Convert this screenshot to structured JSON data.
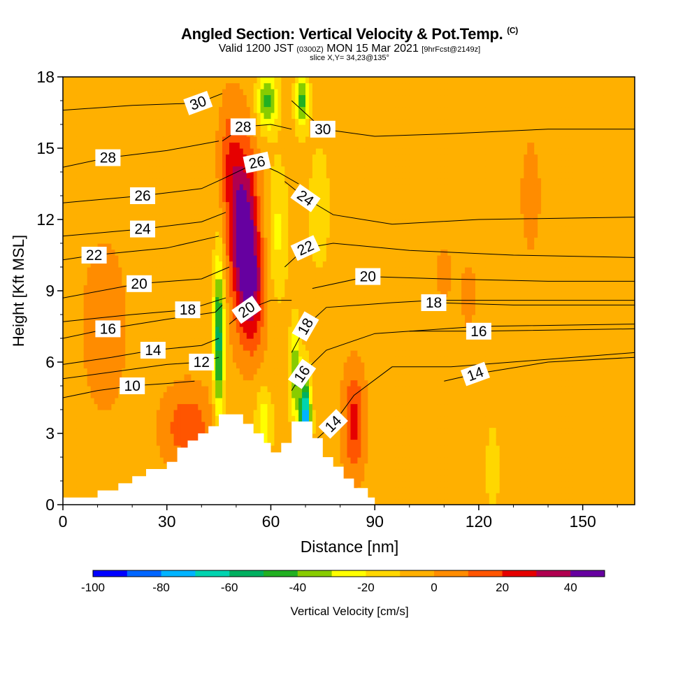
{
  "title": {
    "main": "Angled Section: Vertical Velocity & Pot.Temp.",
    "mark": "(C)",
    "valid_prefix": "Valid 1200 JST",
    "valid_zulu": "(0300Z)",
    "valid_date": "MON 15 Mar 2021",
    "valid_fcst": "[9hrFcst@2149z]",
    "slice": "slice X,Y= 34,23@135°"
  },
  "chart_data": {
    "type": "heatmap",
    "xlabel": "Distance [nm]",
    "ylabel": "Height [Kft MSL]",
    "xlim": [
      0,
      165
    ],
    "ylim": [
      0,
      18
    ],
    "x_ticks": [
      0,
      30,
      60,
      90,
      120,
      150
    ],
    "y_ticks": [
      0,
      3,
      6,
      9,
      12,
      15,
      18
    ],
    "colorbar": {
      "label": "Vertical Velocity [cm/s]",
      "ticks": [
        -100,
        -80,
        -60,
        -40,
        -20,
        0,
        20,
        40
      ],
      "bins": [
        -100,
        -90,
        -80,
        -70,
        -60,
        -50,
        -40,
        -30,
        -20,
        -10,
        0,
        10,
        20,
        30,
        40,
        50
      ],
      "colors": [
        "#0000ff",
        "#0066ff",
        "#00b4ff",
        "#00d4b0",
        "#00b060",
        "#22b022",
        "#88cc00",
        "#ffff00",
        "#ffd700",
        "#ffb000",
        "#ff8c00",
        "#ff5500",
        "#e60000",
        "#b00050",
        "#6600a0"
      ]
    },
    "theta_contours": [
      {
        "label": "10",
        "label_at": [
          20,
          5.0
        ],
        "rot": 0,
        "pts": [
          [
            0,
            4.5
          ],
          [
            10,
            4.8
          ],
          [
            20,
            5.0
          ],
          [
            30,
            5.1
          ],
          [
            38,
            5.2
          ]
        ]
      },
      {
        "label": "12",
        "label_at": [
          40,
          6.0
        ],
        "rot": 0,
        "pts": [
          [
            0,
            5.3
          ],
          [
            15,
            5.6
          ],
          [
            30,
            5.9
          ],
          [
            40,
            6.0
          ],
          [
            45,
            6.2
          ]
        ]
      },
      {
        "label": "14",
        "label_at": [
          26,
          6.5
        ],
        "rot": 0,
        "pts": [
          [
            0,
            5.9
          ],
          [
            14,
            6.2
          ],
          [
            26,
            6.5
          ],
          [
            40,
            6.7
          ],
          [
            45,
            7.0
          ]
        ]
      },
      {
        "label": "16",
        "label_at": [
          13,
          7.4
        ],
        "rot": 0,
        "pts": [
          [
            0,
            7.0
          ],
          [
            13,
            7.4
          ],
          [
            30,
            7.8
          ],
          [
            44,
            8.1
          ],
          [
            46,
            8.4
          ]
        ]
      },
      {
        "label": "18",
        "label_at": [
          36,
          8.2
        ],
        "rot": 0,
        "pts": [
          [
            0,
            7.7
          ],
          [
            20,
            8.0
          ],
          [
            36,
            8.2
          ],
          [
            47,
            8.7
          ]
        ]
      },
      {
        "label": "20",
        "label_at": [
          22,
          9.3
        ],
        "rot": 0,
        "pts": [
          [
            0,
            8.7
          ],
          [
            22,
            9.3
          ],
          [
            40,
            9.5
          ],
          [
            48,
            10.0
          ]
        ]
      },
      {
        "label": "22",
        "label_at": [
          9,
          10.5
        ],
        "rot": 0,
        "pts": [
          [
            0,
            10.3
          ],
          [
            9,
            10.5
          ],
          [
            30,
            10.8
          ],
          [
            45,
            11.3
          ]
        ]
      },
      {
        "label": "24",
        "label_at": [
          23,
          11.6
        ],
        "rot": 0,
        "pts": [
          [
            0,
            11.3
          ],
          [
            23,
            11.6
          ],
          [
            40,
            11.9
          ],
          [
            47,
            12.3
          ]
        ]
      },
      {
        "label": "26",
        "label_at": [
          23,
          13.0
        ],
        "rot": 0,
        "pts": [
          [
            0,
            12.7
          ],
          [
            23,
            13.0
          ],
          [
            40,
            13.3
          ],
          [
            46,
            13.7
          ]
        ]
      },
      {
        "label": "28",
        "label_at": [
          13,
          14.6
        ],
        "rot": 0,
        "pts": [
          [
            0,
            14.2
          ],
          [
            13,
            14.6
          ],
          [
            30,
            14.9
          ],
          [
            45,
            15.3
          ]
        ]
      },
      {
        "label": "30",
        "label_at": [
          39,
          16.9
        ],
        "rot": -20,
        "pts": [
          [
            0,
            16.6
          ],
          [
            20,
            16.8
          ],
          [
            39,
            16.9
          ],
          [
            46,
            17.3
          ]
        ]
      },
      {
        "label": "28",
        "label_at": [
          52,
          15.9
        ],
        "rot": 0,
        "pts": [
          [
            46,
            15.3
          ],
          [
            52,
            15.9
          ],
          [
            60,
            16.0
          ],
          [
            66,
            15.8
          ]
        ]
      },
      {
        "label": "26",
        "label_at": [
          56,
          14.4
        ],
        "rot": -12,
        "pts": [
          [
            46,
            13.7
          ],
          [
            56,
            14.4
          ],
          [
            62,
            14.0
          ],
          [
            68,
            13.5
          ]
        ]
      },
      {
        "label": "30",
        "label_at": [
          75,
          15.8
        ],
        "rot": 0,
        "pts": [
          [
            66,
            17.0
          ],
          [
            75,
            15.8
          ],
          [
            90,
            15.5
          ],
          [
            110,
            15.6
          ],
          [
            140,
            15.8
          ],
          [
            165,
            15.8
          ]
        ]
      },
      {
        "label": "24",
        "label_at": [
          70,
          12.9
        ],
        "rot": 35,
        "pts": [
          [
            64,
            13.6
          ],
          [
            70,
            12.9
          ],
          [
            78,
            12.2
          ],
          [
            95,
            11.8
          ],
          [
            120,
            12.0
          ],
          [
            165,
            12.1
          ]
        ]
      },
      {
        "label": "22",
        "label_at": [
          70,
          10.8
        ],
        "rot": -25,
        "pts": [
          [
            64,
            10.0
          ],
          [
            70,
            10.8
          ],
          [
            78,
            11.0
          ],
          [
            100,
            10.7
          ],
          [
            130,
            10.5
          ],
          [
            165,
            10.4
          ]
        ]
      },
      {
        "label": "20",
        "label_at": [
          53,
          8.2
        ],
        "rot": -35,
        "pts": [
          [
            48,
            7.6
          ],
          [
            53,
            8.2
          ],
          [
            60,
            8.6
          ],
          [
            66,
            8.6
          ]
        ]
      },
      {
        "label": "20",
        "label_at": [
          88,
          9.6
        ],
        "rot": 0,
        "pts": [
          [
            72,
            9.1
          ],
          [
            88,
            9.6
          ],
          [
            110,
            9.5
          ],
          [
            140,
            9.4
          ],
          [
            165,
            9.4
          ]
        ]
      },
      {
        "label": "18",
        "label_at": [
          70,
          7.5
        ],
        "rot": -60,
        "pts": [
          [
            66,
            6.4
          ],
          [
            70,
            7.5
          ],
          [
            76,
            8.3
          ],
          [
            95,
            8.5
          ],
          [
            107,
            8.6
          ],
          [
            165,
            8.6
          ]
        ]
      },
      {
        "label": "18",
        "label_at": [
          107,
          8.5
        ],
        "rot": 0,
        "pts": [
          [
            107,
            8.5
          ],
          [
            130,
            8.4
          ],
          [
            165,
            8.4
          ]
        ]
      },
      {
        "label": "16",
        "label_at": [
          69,
          5.5
        ],
        "rot": -55,
        "pts": [
          [
            66,
            4.8
          ],
          [
            69,
            5.5
          ],
          [
            76,
            6.5
          ],
          [
            90,
            7.2
          ],
          [
            120,
            7.5
          ],
          [
            165,
            7.6
          ]
        ]
      },
      {
        "label": "16",
        "label_at": [
          120,
          7.3
        ],
        "rot": 0,
        "pts": [
          [
            100,
            7.3
          ],
          [
            120,
            7.3
          ],
          [
            165,
            7.4
          ]
        ]
      },
      {
        "label": "14",
        "label_at": [
          78,
          3.4
        ],
        "rot": -45,
        "pts": [
          [
            72,
            2.6
          ],
          [
            78,
            3.4
          ],
          [
            84,
            4.6
          ],
          [
            95,
            5.8
          ],
          [
            112,
            5.8
          ],
          [
            165,
            6.4
          ]
        ]
      },
      {
        "label": "14",
        "label_at": [
          119,
          5.5
        ],
        "rot": -20,
        "pts": [
          [
            110,
            5.2
          ],
          [
            119,
            5.5
          ],
          [
            140,
            6.0
          ],
          [
            165,
            6.2
          ]
        ]
      }
    ]
  },
  "terrain": [
    [
      0,
      0.3
    ],
    [
      10,
      0.3
    ],
    [
      10,
      0.6
    ],
    [
      16,
      0.6
    ],
    [
      16,
      0.9
    ],
    [
      20,
      0.9
    ],
    [
      20,
      1.2
    ],
    [
      24,
      1.2
    ],
    [
      24,
      1.5
    ],
    [
      30,
      1.5
    ],
    [
      30,
      1.8
    ],
    [
      33,
      1.8
    ],
    [
      33,
      2.4
    ],
    [
      36,
      2.4
    ],
    [
      36,
      2.7
    ],
    [
      39,
      2.7
    ],
    [
      39,
      3.0
    ],
    [
      42,
      3.0
    ],
    [
      42,
      3.3
    ],
    [
      45,
      3.3
    ],
    [
      45,
      3.8
    ],
    [
      52,
      3.8
    ],
    [
      52,
      3.4
    ],
    [
      55,
      3.4
    ],
    [
      55,
      3.0
    ],
    [
      58,
      3.0
    ],
    [
      58,
      2.6
    ],
    [
      60,
      2.6
    ],
    [
      60,
      2.2
    ],
    [
      63,
      2.2
    ],
    [
      63,
      2.6
    ],
    [
      66,
      2.6
    ],
    [
      66,
      3.5
    ],
    [
      72,
      3.5
    ],
    [
      72,
      2.8
    ],
    [
      75,
      2.8
    ],
    [
      75,
      2.0
    ],
    [
      78,
      2.0
    ],
    [
      78,
      1.6
    ],
    [
      81,
      1.6
    ],
    [
      81,
      1.1
    ],
    [
      84,
      1.1
    ],
    [
      84,
      0.7
    ],
    [
      88,
      0.7
    ],
    [
      88,
      0.3
    ],
    [
      90,
      0.3
    ],
    [
      90,
      0
    ]
  ]
}
